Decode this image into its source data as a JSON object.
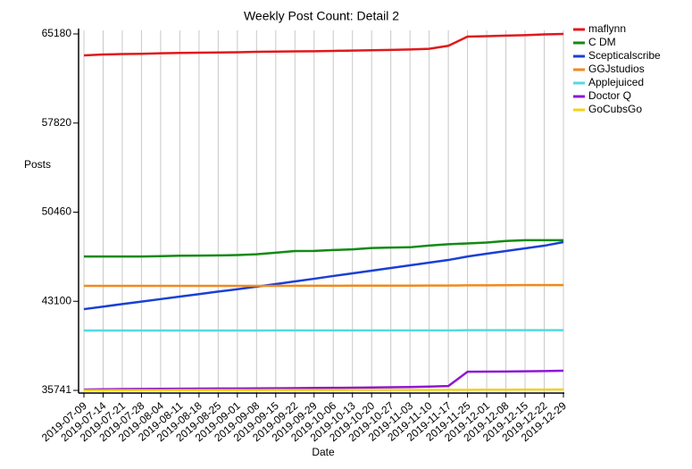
{
  "chart_data": {
    "type": "line",
    "title": "Weekly Post Count: Detail 2",
    "x_label": "Date",
    "y_label": "Posts",
    "categories": [
      "2019-07-09",
      "2019-07-14",
      "2019-07-21",
      "2019-07-28",
      "2019-08-04",
      "2019-08-11",
      "2019-08-18",
      "2019-08-25",
      "2019-09-01",
      "2019-09-08",
      "2019-09-15",
      "2019-09-22",
      "2019-09-29",
      "2019-10-06",
      "2019-10-13",
      "2019-10-20",
      "2019-10-27",
      "2019-11-03",
      "2019-11-10",
      "2019-11-17",
      "2019-11-25",
      "2019-12-01",
      "2019-12-08",
      "2019-12-15",
      "2019-12-22",
      "2019-12-29"
    ],
    "series": [
      {
        "name": "maflynn",
        "color": "#e0191c",
        "values": [
          63410,
          63480,
          63520,
          63540,
          63580,
          63610,
          63630,
          63650,
          63670,
          63700,
          63720,
          63740,
          63750,
          63780,
          63810,
          63830,
          63860,
          63900,
          63950,
          64200,
          64960,
          65000,
          65040,
          65080,
          65140,
          65180
        ]
      },
      {
        "name": "C DM",
        "color": "#138a13",
        "values": [
          46800,
          46800,
          46800,
          46800,
          46830,
          46860,
          46870,
          46890,
          46920,
          46980,
          47110,
          47250,
          47260,
          47330,
          47390,
          47500,
          47540,
          47560,
          47700,
          47810,
          47880,
          47950,
          48080,
          48150,
          48150,
          48150
        ]
      },
      {
        "name": "Scepticalscribe",
        "color": "#1a3fd6",
        "values": [
          42450,
          42660,
          42870,
          43070,
          43280,
          43490,
          43690,
          43900,
          44100,
          44310,
          44520,
          44740,
          44960,
          45190,
          45410,
          45630,
          45850,
          46070,
          46290,
          46510,
          46800,
          47030,
          47250,
          47470,
          47690,
          47990
        ]
      },
      {
        "name": "GGJstudios",
        "color": "#f08a1e",
        "values": [
          44370,
          44370,
          44370,
          44370,
          44370,
          44370,
          44370,
          44370,
          44370,
          44370,
          44370,
          44380,
          44380,
          44380,
          44390,
          44390,
          44390,
          44390,
          44400,
          44400,
          44420,
          44420,
          44430,
          44440,
          44440,
          44440
        ]
      },
      {
        "name": "Applejuiced",
        "color": "#55d8e0",
        "values": [
          40680,
          40680,
          40680,
          40680,
          40680,
          40680,
          40680,
          40680,
          40680,
          40680,
          40690,
          40690,
          40690,
          40690,
          40690,
          40690,
          40690,
          40690,
          40690,
          40690,
          40710,
          40710,
          40710,
          40710,
          40710,
          40710
        ]
      },
      {
        "name": "Doctor Q",
        "color": "#8e17d4",
        "values": [
          35810,
          35830,
          35850,
          35860,
          35870,
          35880,
          35890,
          35900,
          35900,
          35910,
          35920,
          35930,
          35940,
          35950,
          35960,
          35980,
          36000,
          36020,
          36050,
          36100,
          37280,
          37290,
          37300,
          37320,
          37340,
          37360
        ]
      },
      {
        "name": "GoCubsGo",
        "color": "#f2d21b",
        "values": [
          35741,
          35745,
          35748,
          35750,
          35752,
          35755,
          35757,
          35760,
          35762,
          35764,
          35766,
          35768,
          35770,
          35772,
          35774,
          35776,
          35778,
          35780,
          35782,
          35784,
          35790,
          35795,
          35800,
          35805,
          35810,
          35815
        ]
      }
    ],
    "ylim": [
      35741,
      65180
    ],
    "yticks": [
      35741,
      43100,
      50460,
      57820,
      65180
    ],
    "grid": true
  }
}
